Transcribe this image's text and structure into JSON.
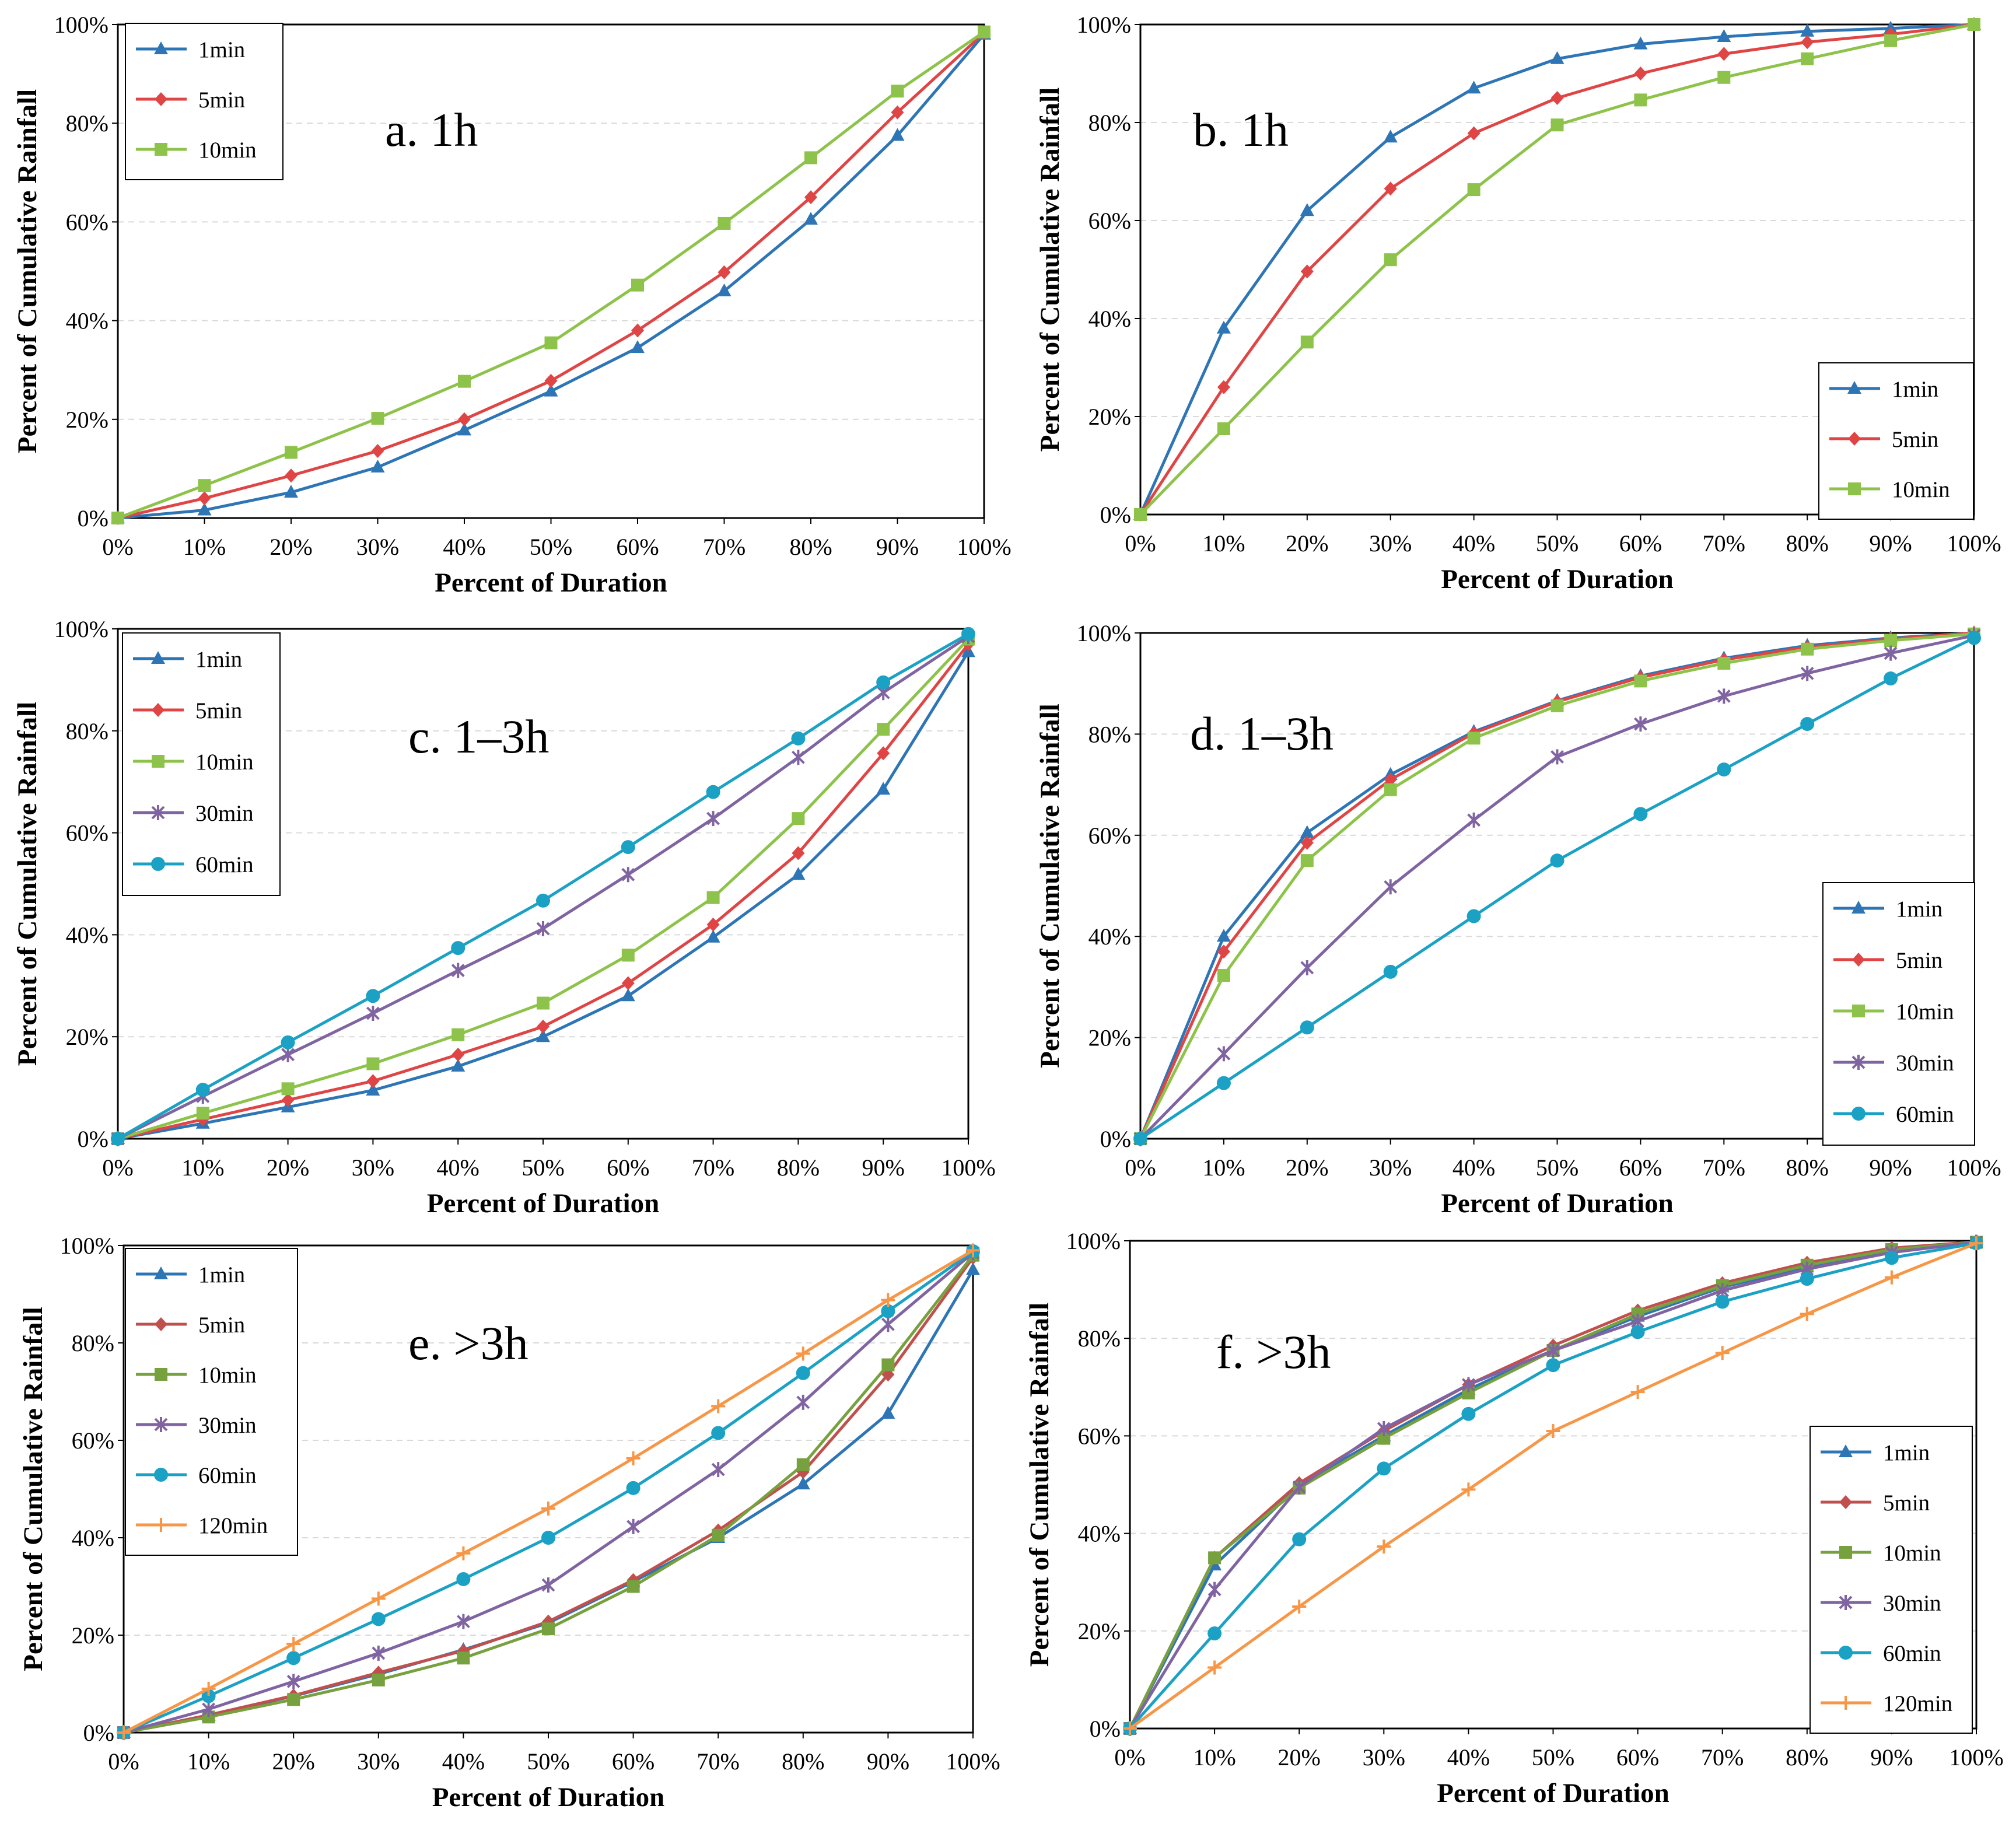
{
  "chart_data": [
    {
      "panel": "a",
      "type": "line",
      "title": "a. 1h",
      "xlabel": "Percent of Duration",
      "ylabel": "Percent of Cumulative Rainfall",
      "x": [
        0,
        10,
        20,
        30,
        40,
        50,
        60,
        70,
        80,
        90,
        100
      ],
      "x_tick_labels": [
        "0%",
        "10%",
        "20%",
        "30%",
        "40%",
        "50%",
        "60%",
        "70%",
        "80%",
        "90%",
        "100%"
      ],
      "y_tick_labels": [
        "0%",
        "20%",
        "40%",
        "60%",
        "80%",
        "100%"
      ],
      "xlim": [
        0,
        100
      ],
      "ylim": [
        0,
        100
      ],
      "grid": "horizontal dashed",
      "legend_position": "top-left",
      "series": [
        {
          "name": "1min",
          "color": "#2E75B6",
          "marker": "triangle",
          "values": [
            0,
            1.6,
            5.2,
            10.3,
            17.8,
            25.7,
            34.5,
            46,
            60.5,
            77.5,
            98
          ]
        },
        {
          "name": "5min",
          "color": "#E04545",
          "marker": "diamond",
          "values": [
            0,
            4,
            8.6,
            13.6,
            20,
            27.8,
            38,
            49.8,
            65,
            82.2,
            98.3
          ]
        },
        {
          "name": "10min",
          "color": "#8DC34A",
          "marker": "square",
          "values": [
            0,
            6.6,
            13.3,
            20.2,
            27.7,
            35.5,
            47.2,
            59.7,
            73,
            86.5,
            98.5
          ]
        }
      ]
    },
    {
      "panel": "b",
      "type": "line",
      "title": "b. 1h",
      "xlabel": "Percent of Duration",
      "ylabel": "Percent of Cumulative Rainfall",
      "x": [
        0,
        10,
        20,
        30,
        40,
        50,
        60,
        70,
        80,
        90,
        100
      ],
      "x_tick_labels": [
        "0%",
        "10%",
        "20%",
        "30%",
        "40%",
        "50%",
        "60%",
        "70%",
        "80%",
        "90%",
        "100%"
      ],
      "y_tick_labels": [
        "0%",
        "20%",
        "40%",
        "60%",
        "80%",
        "100%"
      ],
      "xlim": [
        0,
        100
      ],
      "ylim": [
        0,
        100
      ],
      "grid": "horizontal dashed",
      "legend_position": "bottom-right",
      "series": [
        {
          "name": "1min",
          "color": "#2E75B6",
          "marker": "triangle",
          "values": [
            0,
            38,
            62,
            77,
            87,
            93,
            96,
            97.5,
            98.6,
            99.2,
            100
          ]
        },
        {
          "name": "5min",
          "color": "#E04545",
          "marker": "diamond",
          "values": [
            0,
            26,
            49.6,
            66.5,
            77.8,
            85,
            90,
            94,
            96.4,
            98,
            100
          ]
        },
        {
          "name": "10min",
          "color": "#8DC34A",
          "marker": "square",
          "values": [
            0,
            17.5,
            35.2,
            52,
            66.3,
            79.5,
            84.6,
            89.2,
            93,
            96.7,
            100
          ]
        }
      ]
    },
    {
      "panel": "c",
      "type": "line",
      "title": "c. 1–3h",
      "xlabel": "Percent of Duration",
      "ylabel": "Percent of Cumulative Rainfall",
      "x": [
        0,
        10,
        20,
        30,
        40,
        50,
        60,
        70,
        80,
        90,
        100
      ],
      "x_tick_labels": [
        "0%",
        "10%",
        "20%",
        "30%",
        "40%",
        "50%",
        "60%",
        "70%",
        "80%",
        "90%",
        "100%"
      ],
      "y_tick_labels": [
        "0%",
        "20%",
        "40%",
        "60%",
        "80%",
        "100%"
      ],
      "xlim": [
        0,
        100
      ],
      "ylim": [
        0,
        100
      ],
      "grid": "horizontal dashed",
      "legend_position": "top-left",
      "series": [
        {
          "name": "1min",
          "color": "#2E75B6",
          "marker": "triangle",
          "values": [
            0,
            3,
            6.2,
            9.5,
            14.2,
            20,
            28,
            39.5,
            51.8,
            68.5,
            95.5
          ]
        },
        {
          "name": "5min",
          "color": "#E04545",
          "marker": "diamond",
          "values": [
            0,
            3.8,
            7.6,
            11.3,
            16.5,
            22,
            30.5,
            42,
            56,
            75.6,
            97
          ]
        },
        {
          "name": "10min",
          "color": "#8DC34A",
          "marker": "square",
          "values": [
            0,
            5,
            9.8,
            14.7,
            20.4,
            26.6,
            36,
            47.3,
            62.8,
            80.3,
            98
          ]
        },
        {
          "name": "30min",
          "color": "#8064A2",
          "marker": "star",
          "values": [
            0,
            8.3,
            16.5,
            24.6,
            33,
            41.2,
            51.8,
            62.8,
            74.8,
            87.5,
            98.5
          ]
        },
        {
          "name": "60min",
          "color": "#1BA1C4",
          "marker": "circle",
          "values": [
            0,
            9.6,
            18.9,
            28,
            37.4,
            46.7,
            57.2,
            68,
            78.5,
            89.5,
            99
          ]
        }
      ]
    },
    {
      "panel": "d",
      "type": "line",
      "title": "d. 1–3h",
      "xlabel": "Percent of Duration",
      "ylabel": "Percent of Cumulative Rainfall",
      "x": [
        0,
        10,
        20,
        30,
        40,
        50,
        60,
        70,
        80,
        90,
        100
      ],
      "x_tick_labels": [
        "0%",
        "10%",
        "20%",
        "30%",
        "40%",
        "50%",
        "60%",
        "70%",
        "80%",
        "90%",
        "100%"
      ],
      "y_tick_labels": [
        "0%",
        "20%",
        "40%",
        "60%",
        "80%",
        "100%"
      ],
      "xlim": [
        0,
        100
      ],
      "ylim": [
        0,
        100
      ],
      "grid": "horizontal dashed",
      "legend_position": "bottom-right",
      "series": [
        {
          "name": "1min",
          "color": "#2E75B6",
          "marker": "triangle",
          "values": [
            0,
            40,
            60.5,
            72,
            80.5,
            86.6,
            91.5,
            95,
            97.5,
            99,
            100
          ]
        },
        {
          "name": "5min",
          "color": "#E04545",
          "marker": "diamond",
          "values": [
            0,
            37,
            58.5,
            71,
            80.2,
            86.4,
            91.2,
            94.7,
            97.2,
            98.8,
            100
          ]
        },
        {
          "name": "10min",
          "color": "#8DC34A",
          "marker": "square",
          "values": [
            0,
            32.3,
            55,
            69,
            79.2,
            85.6,
            90.5,
            94,
            96.8,
            98.5,
            99.8
          ]
        },
        {
          "name": "30min",
          "color": "#8064A2",
          "marker": "star",
          "values": [
            0,
            16.8,
            33.8,
            49.8,
            63,
            75.5,
            82,
            87.5,
            92,
            96,
            99.5
          ]
        },
        {
          "name": "60min",
          "color": "#1BA1C4",
          "marker": "circle",
          "values": [
            0,
            11,
            22,
            33,
            44,
            55,
            64.2,
            73,
            82,
            91,
            99
          ]
        }
      ]
    },
    {
      "panel": "e",
      "type": "line",
      "title": "e. >3h",
      "xlabel": "Percent of Duration",
      "ylabel": "Percent of Cumulative Rainfall",
      "x": [
        0,
        10,
        20,
        30,
        40,
        50,
        60,
        70,
        80,
        90,
        100
      ],
      "x_tick_labels": [
        "0%",
        "10%",
        "20%",
        "30%",
        "40%",
        "50%",
        "60%",
        "70%",
        "80%",
        "90%",
        "100%"
      ],
      "y_tick_labels": [
        "0%",
        "20%",
        "40%",
        "60%",
        "80%",
        "100%"
      ],
      "xlim": [
        0,
        100
      ],
      "ylim": [
        0,
        100
      ],
      "grid": "horizontal dashed",
      "legend_position": "top-left",
      "series": [
        {
          "name": "1min",
          "color": "#2E75B6",
          "marker": "triangle",
          "values": [
            0,
            3.5,
            7.5,
            12,
            17,
            22.5,
            31,
            40,
            51,
            65.5,
            95
          ]
        },
        {
          "name": "5min",
          "color": "#C0504D",
          "marker": "diamond",
          "values": [
            0,
            3.6,
            7.6,
            12.3,
            16.8,
            22.8,
            31.3,
            41.5,
            53.5,
            73.5,
            97.5
          ]
        },
        {
          "name": "10min",
          "color": "#77A03F",
          "marker": "square",
          "values": [
            0,
            3.2,
            6.8,
            10.8,
            15.3,
            21.3,
            30,
            40.5,
            55,
            75.5,
            98
          ]
        },
        {
          "name": "30min",
          "color": "#8064A2",
          "marker": "star",
          "values": [
            0,
            4.8,
            10.5,
            16.3,
            22.8,
            30.3,
            42.3,
            54,
            67.8,
            83.8,
            98.5
          ]
        },
        {
          "name": "60min",
          "color": "#1BA1C4",
          "marker": "circle",
          "values": [
            0,
            7.5,
            15.3,
            23.3,
            31.5,
            40,
            50.2,
            61.5,
            73.8,
            86.5,
            98.8
          ]
        },
        {
          "name": "120min",
          "color": "#F79646",
          "marker": "plus",
          "values": [
            0,
            9,
            18.2,
            27.5,
            36.8,
            46,
            56.3,
            67,
            77.8,
            88.8,
            99
          ]
        }
      ]
    },
    {
      "panel": "f",
      "type": "line",
      "title": "f. >3h",
      "xlabel": "Percent of Duration",
      "ylabel": "Percent of Cumulative Rainfall",
      "x": [
        0,
        10,
        20,
        30,
        40,
        50,
        60,
        70,
        80,
        90,
        100
      ],
      "x_tick_labels": [
        "0%",
        "10%",
        "20%",
        "30%",
        "40%",
        "50%",
        "60%",
        "70%",
        "80%",
        "90%",
        "100%"
      ],
      "y_tick_labels": [
        "0%",
        "20%",
        "40%",
        "60%",
        "80%",
        "100%"
      ],
      "xlim": [
        0,
        100
      ],
      "ylim": [
        0,
        100
      ],
      "grid": "horizontal dashed",
      "legend_position": "bottom-right",
      "series": [
        {
          "name": "1min",
          "color": "#2E75B6",
          "marker": "triangle",
          "values": [
            0,
            33.5,
            49.8,
            60,
            69.5,
            77.5,
            84.5,
            90.5,
            94.6,
            98,
            99.6
          ]
        },
        {
          "name": "5min",
          "color": "#C0504D",
          "marker": "diamond",
          "values": [
            0,
            35,
            50.3,
            61,
            70.5,
            78.5,
            85.7,
            91.3,
            95.5,
            98.5,
            99.8
          ]
        },
        {
          "name": "10min",
          "color": "#77A03F",
          "marker": "square",
          "values": [
            0,
            35,
            49.3,
            59.5,
            68.8,
            77.5,
            85,
            90.8,
            95,
            98.2,
            99.7
          ]
        },
        {
          "name": "30min",
          "color": "#8064A2",
          "marker": "star",
          "values": [
            0,
            28.5,
            49.5,
            61.5,
            70.5,
            77.5,
            83.5,
            89.8,
            94.2,
            97.6,
            99.7
          ]
        },
        {
          "name": "60min",
          "color": "#1BA1C4",
          "marker": "circle",
          "values": [
            0,
            19.5,
            38.8,
            53.3,
            64.5,
            74.5,
            81.3,
            87.5,
            92.2,
            96.5,
            99.5
          ]
        },
        {
          "name": "120min",
          "color": "#F79646",
          "marker": "plus",
          "values": [
            0,
            12.5,
            25,
            37.3,
            49,
            61,
            69,
            77,
            85,
            92.5,
            99.5
          ]
        }
      ]
    }
  ]
}
